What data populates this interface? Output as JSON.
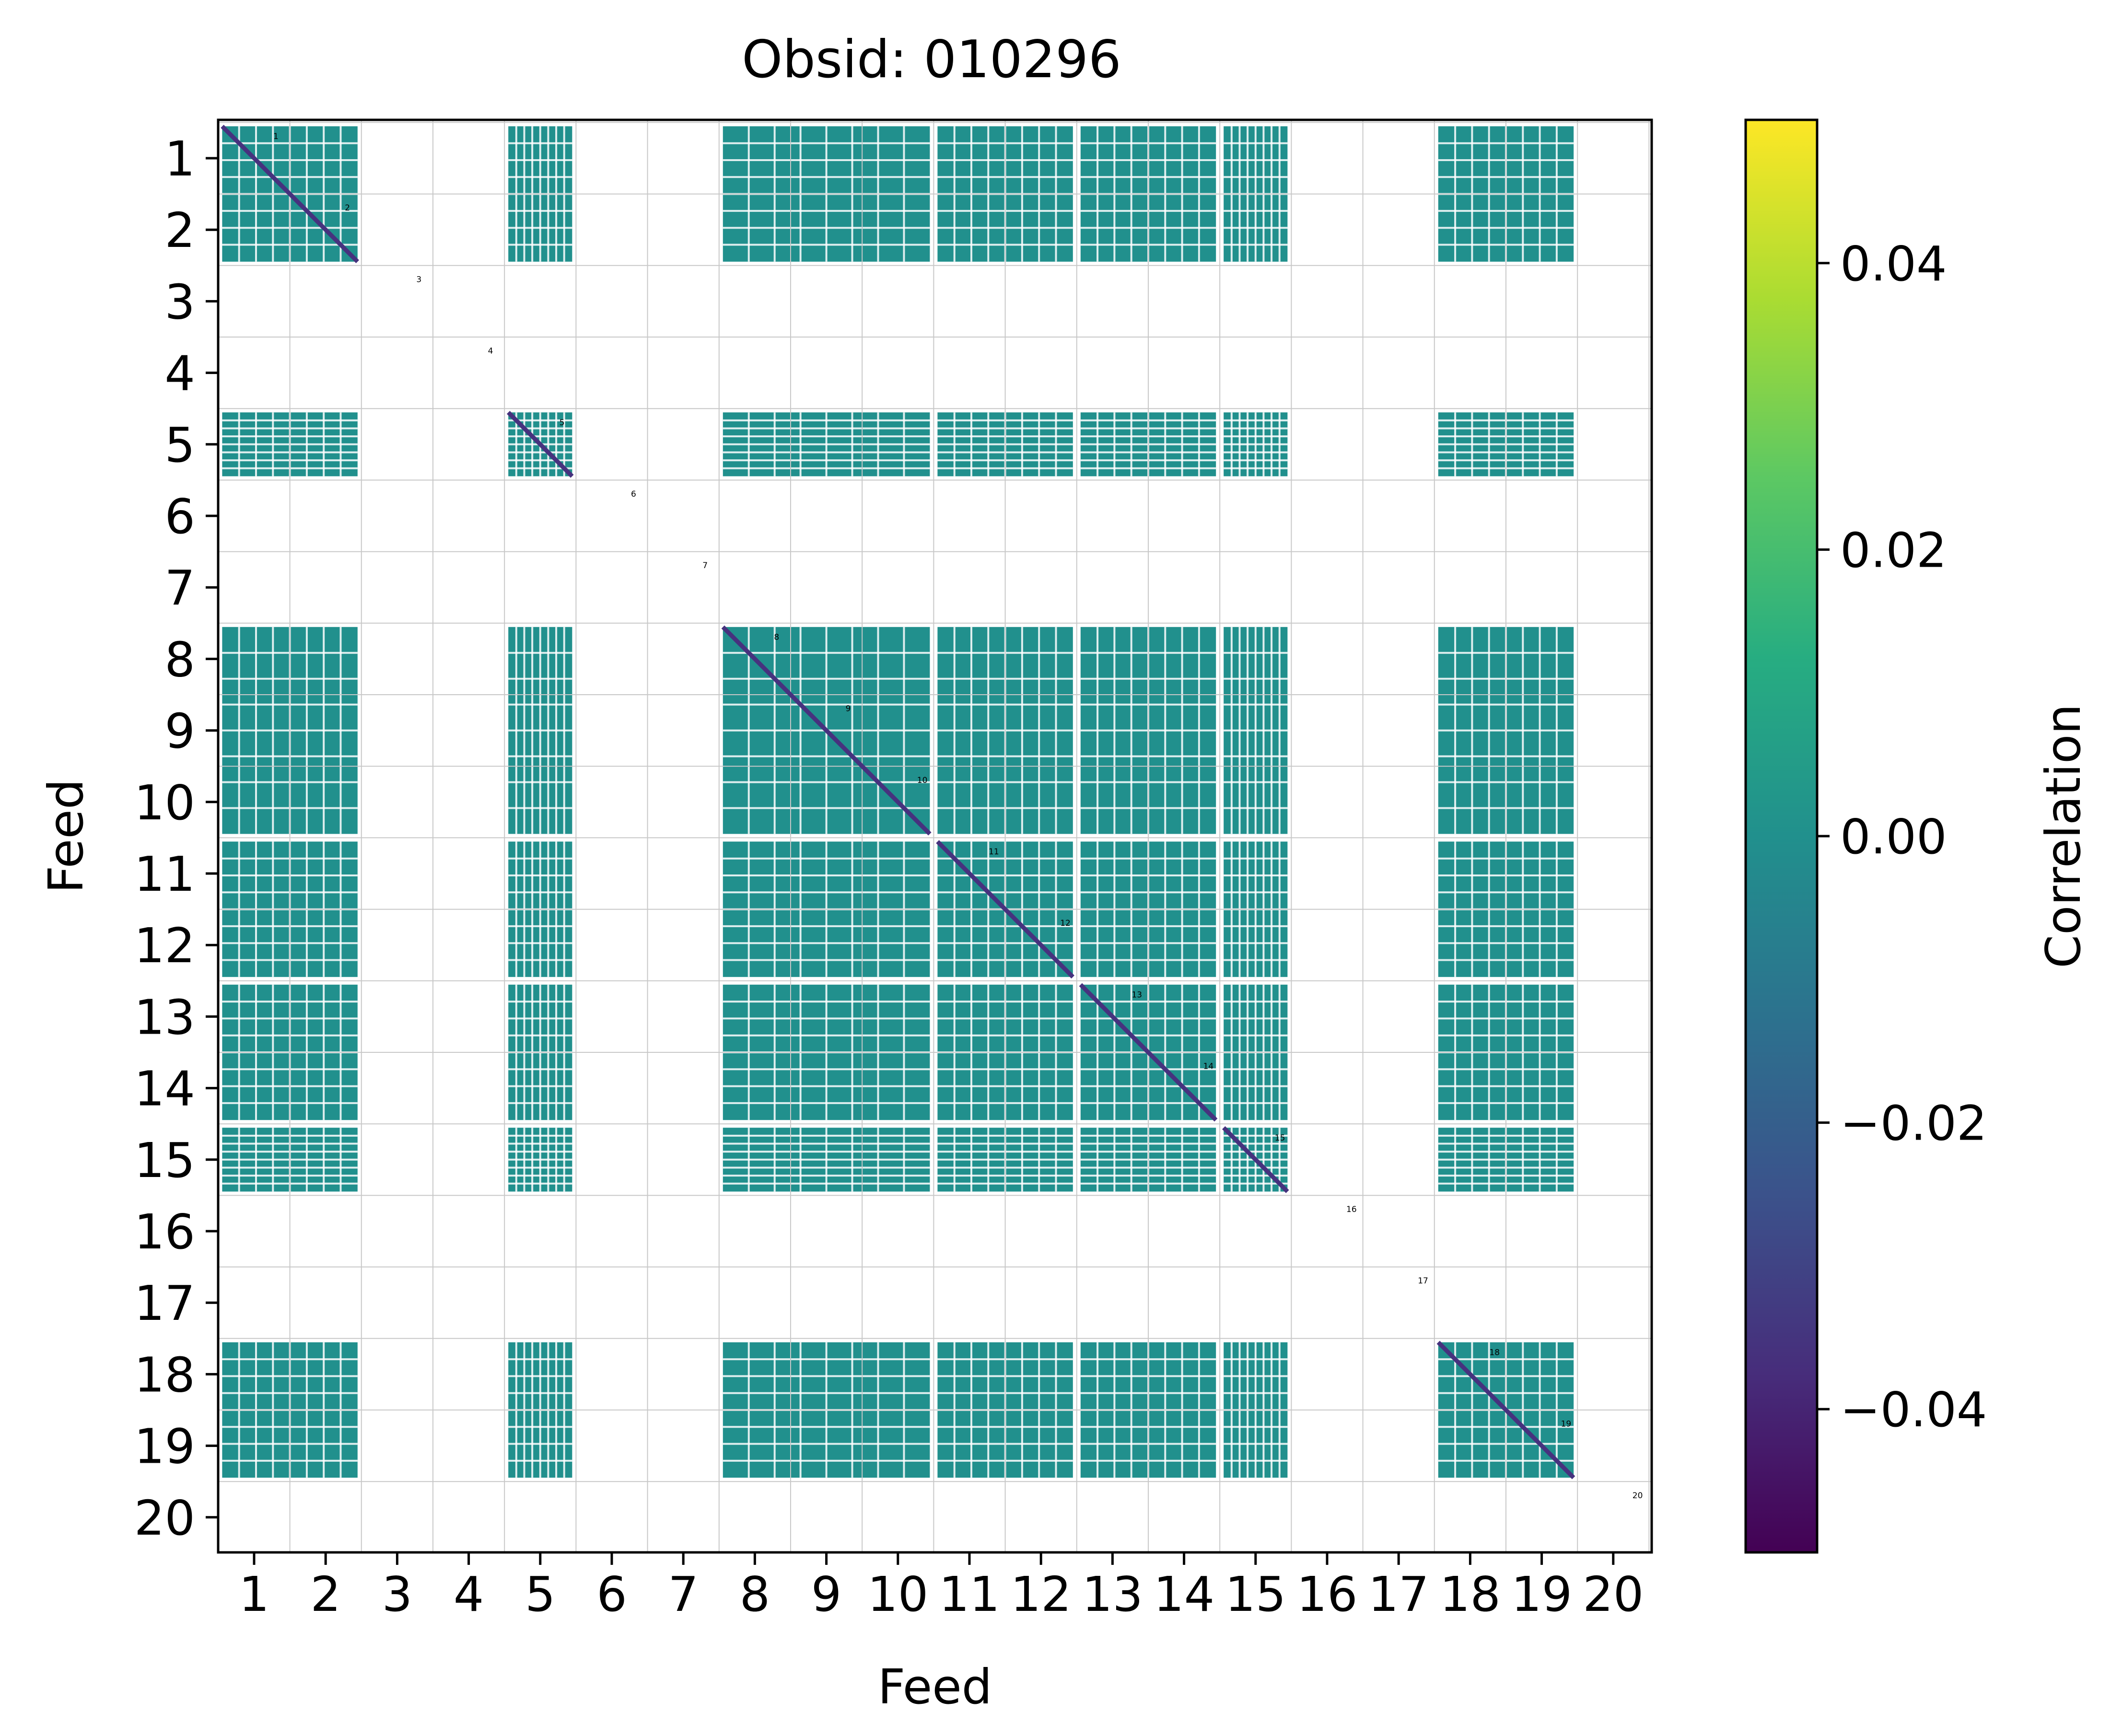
{
  "chart_data": {
    "type": "heatmap",
    "title": "Obsid: 010296",
    "xlabel": "Feed",
    "ylabel": "Feed",
    "x_ticks": [
      "1",
      "2",
      "3",
      "4",
      "5",
      "6",
      "7",
      "8",
      "9",
      "10",
      "11",
      "12",
      "13",
      "14",
      "15",
      "16",
      "17",
      "18",
      "19",
      "20"
    ],
    "y_ticks": [
      "1",
      "2",
      "3",
      "4",
      "5",
      "6",
      "7",
      "8",
      "9",
      "10",
      "11",
      "12",
      "13",
      "14",
      "15",
      "16",
      "17",
      "18",
      "19",
      "20"
    ],
    "feed_groups": [
      {
        "label": "1",
        "feeds": [
          1,
          2
        ],
        "label_feed": 1
      },
      {
        "label": "2",
        "feeds": [
          1,
          2
        ],
        "label_feed": 2
      },
      {
        "label": "3",
        "feeds": [
          3
        ],
        "label_feed": 3
      },
      {
        "label": "4",
        "feeds": [
          4
        ],
        "label_feed": 4
      },
      {
        "label": "5",
        "feeds": [
          5
        ],
        "label_feed": 5
      },
      {
        "label": "6",
        "feeds": [
          6
        ],
        "label_feed": 6
      },
      {
        "label": "7",
        "feeds": [
          7
        ],
        "label_feed": 7
      },
      {
        "label": "8",
        "feeds": [
          8,
          9,
          10
        ],
        "label_feed": 8
      },
      {
        "label": "9",
        "feeds": [
          8,
          9,
          10
        ],
        "label_feed": 9
      },
      {
        "label": "10",
        "feeds": [
          8,
          9,
          10
        ],
        "label_feed": 10
      },
      {
        "label": "11",
        "feeds": [
          11,
          12
        ],
        "label_feed": 11
      },
      {
        "label": "12",
        "feeds": [
          11,
          12
        ],
        "label_feed": 12
      },
      {
        "label": "13",
        "feeds": [
          13,
          14
        ],
        "label_feed": 13
      },
      {
        "label": "14",
        "feeds": [
          13,
          14
        ],
        "label_feed": 14
      },
      {
        "label": "15",
        "feeds": [
          15
        ],
        "label_feed": 15
      },
      {
        "label": "16",
        "feeds": [
          16
        ],
        "label_feed": 16
      },
      {
        "label": "17",
        "feeds": [
          17
        ],
        "label_feed": 17
      },
      {
        "label": "18",
        "feeds": [
          18,
          19
        ],
        "label_feed": 18
      },
      {
        "label": "19",
        "feeds": [
          18,
          19
        ],
        "label_feed": 19
      },
      {
        "label": "20",
        "feeds": [
          20
        ],
        "label_feed": 20
      }
    ],
    "active_blocks": [
      {
        "start": 1,
        "end": 2,
        "fraction": 0.5
      },
      {
        "start": 5,
        "end": 5,
        "fraction": 0.5
      },
      {
        "start": 8,
        "end": 10,
        "fraction": 0.5
      },
      {
        "start": 11,
        "end": 12,
        "fraction": 0.5
      },
      {
        "start": 13,
        "end": 14,
        "fraction": 0.5
      },
      {
        "start": 15,
        "end": 15,
        "fraction": 0.5
      },
      {
        "start": 18,
        "end": 19,
        "fraction": 0.5
      }
    ],
    "dominant_value": 0.0,
    "diagonal_value": -0.05,
    "colorbar": {
      "label": "Correlation",
      "colormap": "viridis",
      "vmin": -0.05,
      "vmax": 0.05,
      "ticks": [
        0.04,
        0.02,
        0.0,
        -0.02,
        -0.04
      ],
      "tick_labels": [
        "0.04",
        "0.02",
        "0.00",
        "−0.02",
        "−0.04"
      ]
    },
    "colors": {
      "block_fill": "#21908d",
      "block_gap": "#ffffff",
      "diagonal": "#46327e",
      "gridline": "#c8c8c8",
      "viridis_bottom": "#440154",
      "viridis_top": "#fde725"
    }
  }
}
